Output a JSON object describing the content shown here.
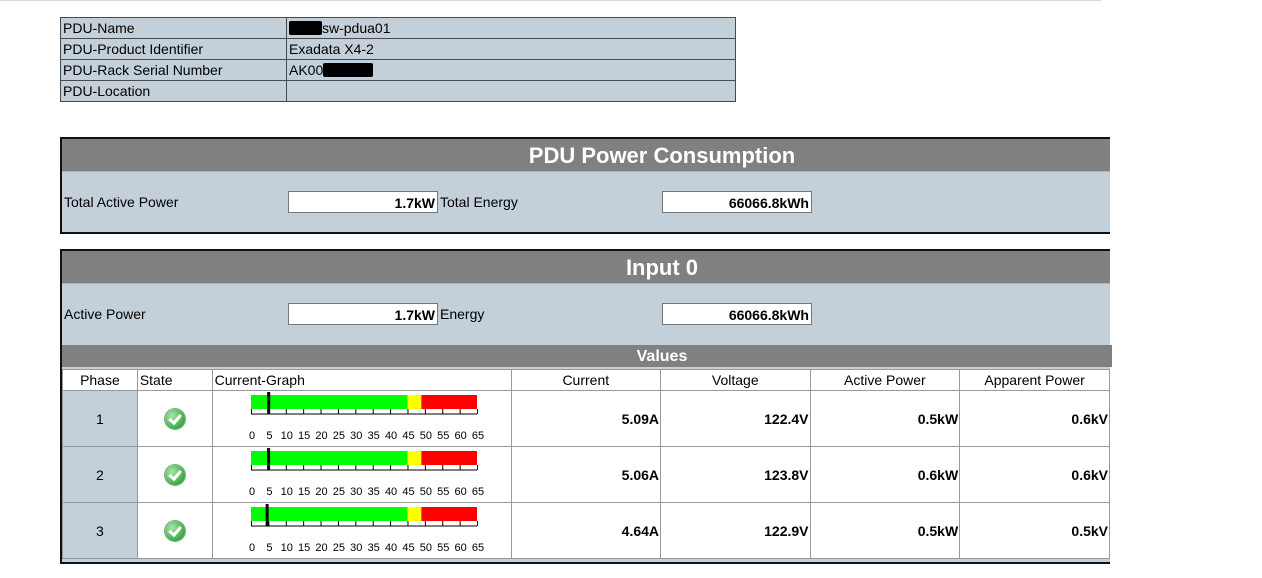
{
  "info": {
    "rows": [
      {
        "label": "PDU-Name",
        "value": "sw-pdua01",
        "redacted_prefix": true
      },
      {
        "label": "PDU-Product Identifier",
        "value": "Exadata X4-2"
      },
      {
        "label": "PDU-Rack Serial Number",
        "value": "AK00",
        "redacted_suffix": true
      },
      {
        "label": "PDU-Location",
        "value": ""
      }
    ]
  },
  "consumption": {
    "title": "PDU Power Consumption",
    "total_active_power_label": "Total Active Power",
    "total_active_power": "1.7kW",
    "total_energy_label": "Total Energy",
    "total_energy": "66066.8kWh"
  },
  "input": {
    "title": "Input 0",
    "active_power_label": "Active Power",
    "active_power": "1.7kW",
    "energy_label": "Energy",
    "energy": "66066.8kWh",
    "values_title": "Values",
    "columns": [
      "Phase",
      "State",
      "Current-Graph",
      "Current",
      "Voltage",
      "Active Power",
      "Apparent Power"
    ],
    "phases": [
      {
        "phase": "1",
        "state": "ok-check-icon",
        "current_value": 5.09,
        "current": "5.09A",
        "voltage": "122.4V",
        "active_power": "0.5kW",
        "apparent_power": "0.6kV"
      },
      {
        "phase": "2",
        "state": "ok-check-icon",
        "current_value": 5.06,
        "current": "5.06A",
        "voltage": "123.8V",
        "active_power": "0.6kW",
        "apparent_power": "0.6kV"
      },
      {
        "phase": "3",
        "state": "ok-check-icon",
        "current_value": 4.64,
        "current": "4.64A",
        "voltage": "122.9V",
        "active_power": "0.5kW",
        "apparent_power": "0.5kV"
      }
    ],
    "gauge": {
      "max": 65,
      "green_to": 45,
      "yellow_to": 49,
      "tick_labels": [
        "0",
        "5",
        "10",
        "15",
        "20",
        "25",
        "30",
        "35",
        "40",
        "45",
        "50",
        "55",
        "60",
        "65"
      ],
      "colors": {
        "green": "#00ff00",
        "yellow": "#ffff00",
        "red": "#ff0000",
        "marker": "#000000"
      }
    }
  }
}
